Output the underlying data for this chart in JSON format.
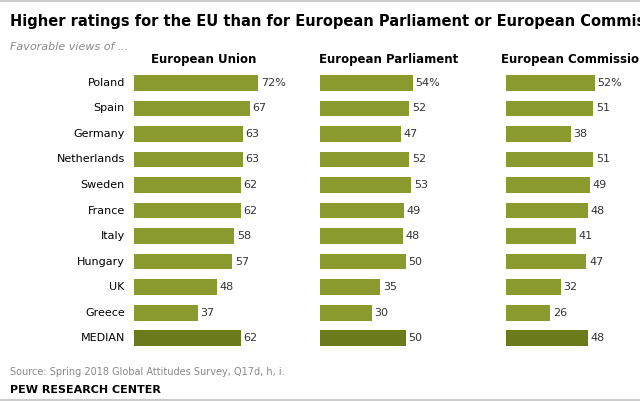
{
  "title": "Higher ratings for the EU than for European Parliament or European Commission",
  "subtitle": "Favorable views of ...",
  "categories": [
    "Poland",
    "Spain",
    "Germany",
    "Netherlands",
    "Sweden",
    "France",
    "Italy",
    "Hungary",
    "UK",
    "Greece",
    "MEDIAN"
  ],
  "col_titles": [
    "European Union",
    "European Parliament",
    "European Commission"
  ],
  "values": {
    "European Union": [
      72,
      67,
      63,
      63,
      62,
      62,
      58,
      57,
      48,
      37,
      62
    ],
    "European Parliament": [
      54,
      52,
      47,
      52,
      53,
      49,
      48,
      50,
      35,
      30,
      50
    ],
    "European Commission": [
      52,
      51,
      38,
      51,
      49,
      48,
      41,
      47,
      32,
      26,
      48
    ]
  },
  "bar_color": "#8b9a2e",
  "median_color": "#6b7a1a",
  "source": "Source: Spring 2018 Global Attitudes Survey, Q17d, h, i.",
  "footer": "PEW RESEARCH CENTER",
  "background_color": "#ffffff",
  "max_val": 80,
  "title_fontsize": 10.5,
  "subtitle_fontsize": 8,
  "label_fontsize": 8,
  "value_fontsize": 8,
  "col_title_fontsize": 8.5
}
